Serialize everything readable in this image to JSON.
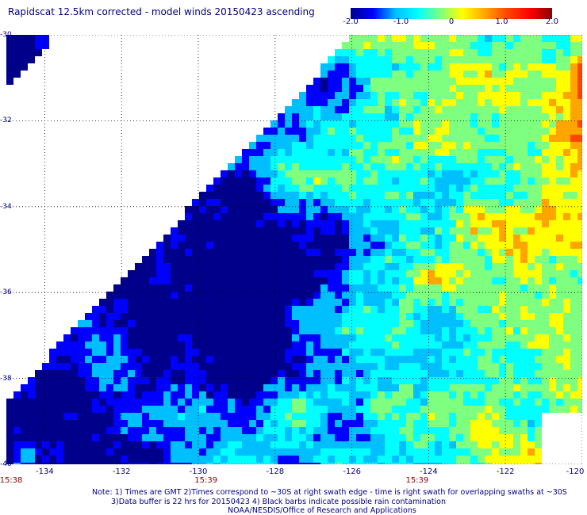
{
  "title": "Rapidscat 12.5km corrected - model winds 20150423 ascending",
  "colorbar": {
    "ticks": [
      "-2.0",
      "-1.0",
      "0",
      "1.0",
      "2.0"
    ],
    "tick_values": [
      -2.0,
      -1.0,
      0,
      1.0,
      2.0
    ],
    "range": [
      -2.0,
      2.0
    ],
    "colors": [
      "#00008b",
      "#0000ff",
      "#00bfff",
      "#00ffff",
      "#7fff7f",
      "#ffff00",
      "#ffa500",
      "#ff4500",
      "#ff0000",
      "#8b0000"
    ]
  },
  "map": {
    "lon_range": [
      -135,
      -120
    ],
    "lat_range": [
      -40,
      -30
    ],
    "lat_labels": [
      "-30",
      "-32",
      "-34",
      "-36",
      "-38",
      "-40"
    ],
    "lat_values": [
      -30,
      -32,
      -34,
      -36,
      -38,
      -40
    ],
    "lon_labels": [
      "-134",
      "-132",
      "-130",
      "-128",
      "-126",
      "-124",
      "-122",
      "-120"
    ],
    "lon_values": [
      -134,
      -132,
      -130,
      -128,
      -126,
      -124,
      -122,
      -120
    ],
    "time_labels": [
      {
        "text": "15:38",
        "lon": -135
      },
      {
        "text": "15:39",
        "lon": -129.8
      },
      {
        "text": "15:39",
        "lon": -124.3
      }
    ],
    "grid": "dotted",
    "no_data_color": "#ffffff"
  },
  "notes": [
    "Note: 1) Times are GMT 2)Times correspond to ~30S at right swath edge - time is right swath for overlapping swaths at ~30S",
    "3)Data buffer is 22 hrs for 20150423 4) Black barbs indicate possible rain contamination",
    "NOAA/NESDIS/Office of Research and Applications"
  ]
}
